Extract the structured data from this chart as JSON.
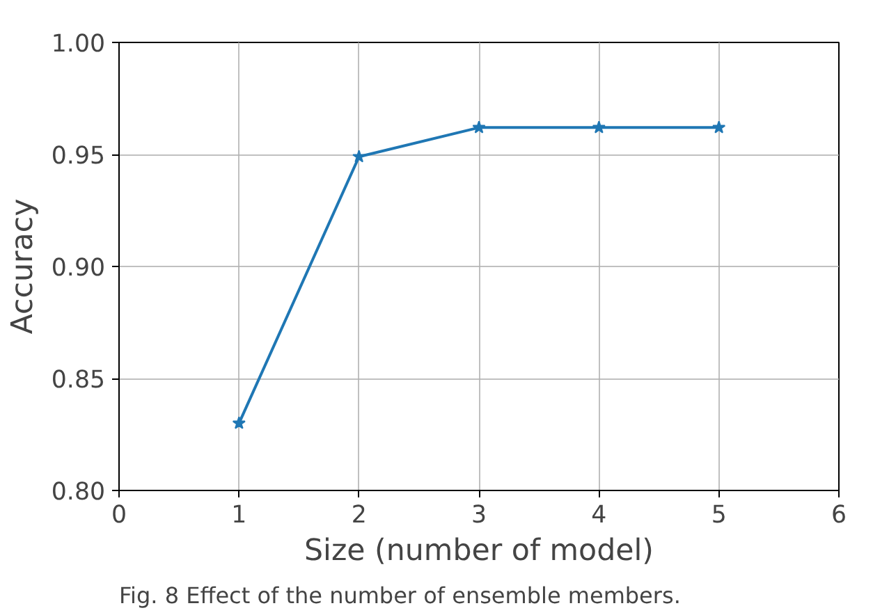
{
  "chart_data": {
    "type": "line",
    "xlabel": "Size (number of model)",
    "ylabel": "Accuracy",
    "x": [
      1,
      2,
      3,
      4,
      5
    ],
    "series": [
      {
        "color": "#1f77b4",
        "values": [
          0.83,
          0.949,
          0.962,
          0.962,
          0.962
        ]
      }
    ],
    "xlim": [
      0,
      6
    ],
    "xticks": [
      0,
      1,
      2,
      3,
      4,
      5,
      6
    ],
    "ylim": [
      0.8,
      1.0
    ],
    "yticks": [
      {
        "value": 0.8,
        "label": "0.80"
      },
      {
        "value": 0.85,
        "label": "0.85"
      },
      {
        "value": 0.9,
        "label": "0.90"
      },
      {
        "value": 0.95,
        "label": "0.95"
      },
      {
        "value": 1.0,
        "label": "1.00"
      }
    ],
    "grid": true,
    "marker": "star",
    "line_style": "solid",
    "annotations": [
      "Fig. 8 Effect of the number of ensemble members."
    ]
  }
}
